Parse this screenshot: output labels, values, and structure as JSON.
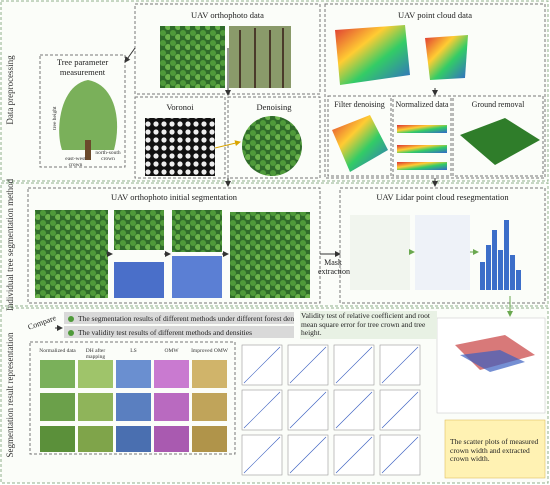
{
  "sections": {
    "preprocessing": "Data preprocessing",
    "segmentation": "Individual tree segmentation method",
    "results": "Segmentation result representation"
  },
  "tree_parameter": {
    "title": "Tree parameter measurement",
    "labels": [
      "tree height",
      "east-west crown",
      "north-south crown"
    ]
  },
  "orthophoto": {
    "title": "UAV orthophoto data",
    "steps": [
      "Voronoi",
      "Denoising"
    ]
  },
  "point_cloud": {
    "title": "UAV point cloud data",
    "steps": [
      "Filter denoising",
      "Normalized data",
      "Ground removal"
    ]
  },
  "initial_segmentation": "UAV orthophoto initial segmentation",
  "resegmentation": "UAV Lidar point cloud resegmentation",
  "mask": "Mask extraction",
  "compare": "Compare",
  "banners": [
    "The segmentation results of different methods under different forest densities",
    "The validity test results of different methods and densities"
  ],
  "validity": "Validity test of relative coefficient and root mean square error for tree crown and tree height.",
  "columns": [
    "Normalized data",
    "DH after mapping",
    "LS",
    "OMW",
    "Improved OMW"
  ],
  "scatter_note": "The scatter plots of measured crown width and extracted crown width."
}
